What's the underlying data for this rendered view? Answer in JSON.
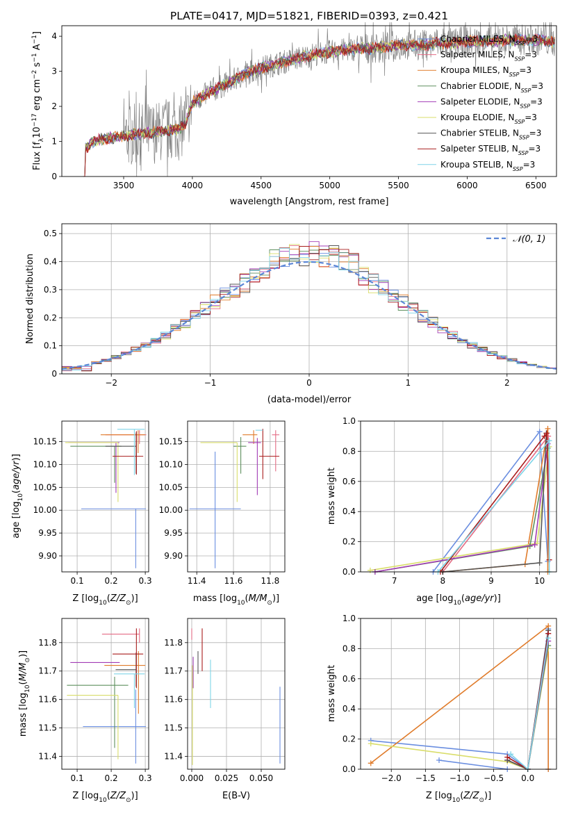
{
  "title": "PLATE=0417, MJD=51821, FIBERID=0393, z=0.421",
  "colors": {
    "chabrier_miles": "#6a8ee0",
    "salpeter_miles": "#e46b84",
    "kroupa_miles": "#e07b2a",
    "chabrier_elodie": "#5e8f5e",
    "salpeter_elodie": "#a23bb5",
    "kroupa_elodie": "#d9dd6a",
    "chabrier_stelib": "#555555",
    "salpeter_stelib": "#a81c1c",
    "kroupa_stelib": "#7fd4e8",
    "data": "#808080"
  },
  "chart_data": [
    {
      "id": "spectrum",
      "type": "line",
      "xlabel": "wavelength [Angstrom, rest frame]",
      "ylabel": "Flux [f_λ 10^-17 erg cm^-2 s^-1 A^-1]",
      "xlim": [
        3050,
        6650
      ],
      "ylim": [
        0,
        4.3
      ],
      "xticks": [
        3500,
        4000,
        4500,
        5000,
        5500,
        6000,
        6500
      ],
      "yticks": [
        0,
        1,
        2,
        3,
        4
      ],
      "grid": false,
      "legend_position": "right",
      "legend": [
        "Chabrier MILES, N_SSP=3",
        "Salpeter MILES, N_SSP=3",
        "Kroupa MILES, N_SSP=3",
        "Chabrier ELODIE, N_SSP=3",
        "Salpeter ELODIE, N_SSP=3",
        "Kroupa ELODIE, N_SSP=3",
        "Chabrier STELIB, N_SSP=3",
        "Salpeter STELIB, N_SSP=3",
        "Kroupa STELIB, N_SSP=3"
      ],
      "model_continuum": {
        "x": [
          3200,
          3220,
          3300,
          3400,
          3500,
          3600,
          3700,
          3800,
          3900,
          3950,
          4000,
          4100,
          4200,
          4300,
          4400,
          4500,
          4600,
          4700,
          4800,
          4900,
          5000,
          5100,
          5200,
          5300,
          5400,
          5500,
          5600,
          5700,
          5800,
          5900,
          6000,
          6100,
          6200,
          6300,
          6400,
          6500,
          6600
        ],
        "y": [
          0.0,
          0.8,
          1.05,
          1.1,
          1.15,
          1.2,
          1.25,
          1.3,
          1.35,
          1.5,
          2.1,
          2.35,
          2.55,
          2.75,
          2.95,
          3.1,
          3.2,
          3.3,
          3.4,
          3.5,
          3.55,
          3.6,
          3.65,
          3.65,
          3.7,
          3.75,
          3.75,
          3.75,
          3.8,
          3.8,
          3.85,
          3.85,
          3.85,
          3.9,
          3.9,
          3.9,
          3.85
        ]
      }
    },
    {
      "id": "residuals",
      "type": "step",
      "xlabel": "(data-model)/error",
      "ylabel": "Normed distribution",
      "xlim": [
        -2.5,
        2.5
      ],
      "ylim": [
        0,
        0.535
      ],
      "xticks": [
        -2,
        -1,
        0,
        1,
        2
      ],
      "yticks": [
        0.0,
        0.1,
        0.2,
        0.3,
        0.4,
        0.5
      ],
      "grid": true,
      "legend_position": "top-right",
      "legend": [
        "𝒩(0, 1)"
      ],
      "bin_edges_start": -2.5,
      "bin_width": 0.1
    },
    {
      "id": "age_vs_Z",
      "type": "errorbar",
      "xlabel": "Z [log10(Z/Z⊙)]",
      "ylabel": "age [log10(age/yr)]",
      "xlim": [
        0.055,
        0.31
      ],
      "ylim": [
        9.865,
        10.195
      ],
      "xticks": [
        0.1,
        0.2,
        0.3
      ],
      "xticklabels": [
        "0.1",
        "0.2",
        "0.3"
      ],
      "yticks": [
        9.9,
        9.95,
        10.0,
        10.05,
        10.1,
        10.15
      ],
      "yticklabels": [
        "9.90",
        "9.95",
        "10.00",
        "10.05",
        "10.10",
        "10.15"
      ],
      "grid": true,
      "points": [
        {
          "model": "chabrier_miles",
          "x": 0.272,
          "xerr": [
            0.16,
            0.03
          ],
          "y": 10.003,
          "yerr": [
            0.13,
            0.0
          ]
        },
        {
          "model": "salpeter_miles",
          "x": 0.283,
          "xerr": [
            0.1,
            0.02
          ],
          "y": 10.165,
          "yerr": [
            0.02,
            0.01
          ]
        },
        {
          "model": "kroupa_miles",
          "x": 0.279,
          "xerr": [
            0.11,
            0.02
          ],
          "y": 10.165,
          "yerr": [
            0.04,
            0.01
          ]
        },
        {
          "model": "chabrier_elodie",
          "x": 0.21,
          "xerr": [
            0.13,
            0.02
          ],
          "y": 10.14,
          "yerr": [
            0.08,
            0.0
          ]
        },
        {
          "model": "salpeter_elodie",
          "x": 0.214,
          "xerr": [
            0.14,
            0.01
          ],
          "y": 10.148,
          "yerr": [
            0.11,
            0.0
          ]
        },
        {
          "model": "kroupa_elodie",
          "x": 0.22,
          "xerr": [
            0.155,
            0.0
          ],
          "y": 10.148,
          "yerr": [
            0.13,
            0.0
          ]
        },
        {
          "model": "chabrier_stelib",
          "x": 0.273,
          "xerr": [
            0.09,
            0.0
          ],
          "y": 10.14,
          "yerr": [
            0.06,
            0.03
          ]
        },
        {
          "model": "salpeter_stelib",
          "x": 0.274,
          "xerr": [
            0.07,
            0.02
          ],
          "y": 10.118,
          "yerr": [
            0.04,
            0.055
          ]
        },
        {
          "model": "kroupa_stelib",
          "x": 0.268,
          "xerr": [
            0.05,
            0.03
          ],
          "y": 10.177,
          "yerr": [
            0.1,
            0.0
          ]
        }
      ]
    },
    {
      "id": "age_vs_mass",
      "type": "errorbar",
      "xlabel": "mass [log10(M/M⊙)]",
      "ylabel": "",
      "xlim": [
        11.35,
        11.88
      ],
      "ylim": [
        9.865,
        10.195
      ],
      "xticks": [
        11.4,
        11.6,
        11.8
      ],
      "xticklabels": [
        "11.4",
        "11.6",
        "11.8"
      ],
      "yticks": [
        9.9,
        9.95,
        10.0,
        10.05,
        10.1,
        10.15
      ],
      "yticklabels": [
        "9.90",
        "9.95",
        "10.00",
        "10.05",
        "10.10",
        "10.15"
      ],
      "grid": true,
      "points": [
        {
          "model": "chabrier_miles",
          "x": 11.5,
          "xerr": [
            0.14,
            0.14
          ],
          "y": 10.003,
          "yerr": [
            0.13,
            0.125
          ]
        },
        {
          "model": "salpeter_miles",
          "x": 11.83,
          "xerr": [
            0.02,
            0.02
          ],
          "y": 10.165,
          "yerr": [
            0.08,
            0.01
          ]
        },
        {
          "model": "kroupa_miles",
          "x": 11.71,
          "xerr": [
            0.06,
            0.02
          ],
          "y": 10.165,
          "yerr": [
            0.02,
            0.01
          ]
        },
        {
          "model": "chabrier_elodie",
          "x": 11.64,
          "xerr": [
            0.04,
            0.03
          ],
          "y": 10.14,
          "yerr": [
            0.06,
            0.02
          ]
        },
        {
          "model": "salpeter_elodie",
          "x": 11.73,
          "xerr": [
            0.05,
            0.02
          ],
          "y": 10.148,
          "yerr": [
            0.115,
            0.01
          ]
        },
        {
          "model": "kroupa_elodie",
          "x": 11.62,
          "xerr": [
            0.2,
            0.0
          ],
          "y": 10.148,
          "yerr": [
            0.13,
            0.0
          ]
        },
        {
          "model": "chabrier_stelib",
          "x": 11.7,
          "xerr": [
            0.0,
            0.0
          ],
          "y": 10.14,
          "yerr": [
            0.0,
            0.0
          ]
        },
        {
          "model": "salpeter_stelib",
          "x": 11.76,
          "xerr": [
            0.02,
            0.09
          ],
          "y": 10.118,
          "yerr": [
            0.05,
            0.06
          ]
        },
        {
          "model": "kroupa_stelib",
          "x": 11.72,
          "xerr": [
            0.0,
            0.04
          ],
          "y": 10.175,
          "yerr": [
            0.0,
            0.0
          ]
        }
      ]
    },
    {
      "id": "mass_weight_vs_age",
      "type": "line",
      "xlabel": "age [log10(age/yr)]",
      "ylabel": "mass weight",
      "xlim": [
        6.3,
        10.35
      ],
      "ylim": [
        0,
        1.0
      ],
      "xticks": [
        7,
        8,
        9,
        10
      ],
      "yticks": [
        0.0,
        0.2,
        0.4,
        0.6,
        0.8,
        1.0
      ],
      "yticklabels": [
        "0.0",
        "0.2",
        "0.4",
        "0.6",
        "0.8",
        "1.0"
      ],
      "grid": true,
      "series": [
        {
          "model": "chabrier_miles",
          "x": [
            7.8,
            10.0,
            10.17
          ],
          "y": [
            0.0,
            0.93,
            0.07
          ]
        },
        {
          "model": "kroupa_miles",
          "x": [
            8.0,
            9.7,
            10.17,
            10.17
          ],
          "y": [
            0.0,
            0.05,
            0.95,
            0.0
          ]
        },
        {
          "model": "salpeter_miles",
          "x": [
            8.0,
            10.18,
            10.2
          ],
          "y": [
            0.0,
            0.9,
            0.08
          ]
        },
        {
          "model": "kroupa_elodie",
          "x": [
            6.5,
            9.95,
            10.2
          ],
          "y": [
            0.01,
            0.19,
            0.83
          ]
        },
        {
          "model": "chabrier_elodie",
          "x": [
            6.6,
            9.8,
            10.17
          ],
          "y": [
            0.0,
            0.17,
            0.82
          ]
        },
        {
          "model": "salpeter_elodie",
          "x": [
            6.6,
            9.9,
            10.17
          ],
          "y": [
            0.0,
            0.18,
            0.85
          ]
        },
        {
          "model": "chabrier_stelib",
          "x": [
            8.0,
            10.0,
            10.14
          ],
          "y": [
            0.0,
            0.06,
            0.92
          ]
        },
        {
          "model": "salpeter_stelib",
          "x": [
            7.95,
            10.1,
            10.15,
            10.2
          ],
          "y": [
            0.0,
            0.9,
            0.92,
            0.08
          ]
        },
        {
          "model": "kroupa_stelib",
          "x": [
            7.9,
            10.2,
            10.2
          ],
          "y": [
            0.0,
            0.87,
            0.0
          ]
        }
      ]
    },
    {
      "id": "mass_vs_Z",
      "type": "errorbar",
      "xlabel": "Z [log10(Z/Z⊙)]",
      "ylabel": "mass [log10(M/M⊙)]",
      "xlim": [
        0.055,
        0.31
      ],
      "ylim": [
        11.355,
        11.885
      ],
      "xticks": [
        0.1,
        0.2,
        0.3
      ],
      "xticklabels": [
        "0.1",
        "0.2",
        "0.3"
      ],
      "yticks": [
        11.4,
        11.5,
        11.6,
        11.7,
        11.8
      ],
      "yticklabels": [
        "11.4",
        "11.5",
        "11.6",
        "11.7",
        "11.8"
      ],
      "grid": true,
      "points": [
        {
          "model": "chabrier_miles",
          "x": 0.272,
          "xerr": [
            0.155,
            0.03
          ],
          "y": 11.505,
          "yerr": [
            0.13,
            0.13
          ]
        },
        {
          "model": "salpeter_miles",
          "x": 0.283,
          "xerr": [
            0.11,
            0.0
          ],
          "y": 11.83,
          "yerr": [
            0.03,
            0.02
          ]
        },
        {
          "model": "kroupa_miles",
          "x": 0.28,
          "xerr": [
            0.1,
            0.02
          ],
          "y": 11.72,
          "yerr": [
            0.17,
            0.05
          ]
        },
        {
          "model": "chabrier_elodie",
          "x": 0.21,
          "xerr": [
            0.14,
            0.04
          ],
          "y": 11.65,
          "yerr": [
            0.22,
            0.03
          ]
        },
        {
          "model": "salpeter_elodie",
          "x": 0.215,
          "xerr": [
            0.135,
            0.01
          ],
          "y": 11.73,
          "yerr": [
            0.0,
            0.0
          ]
        },
        {
          "model": "kroupa_elodie",
          "x": 0.22,
          "xerr": [
            0.15,
            0.0
          ],
          "y": 11.615,
          "yerr": [
            0.225,
            0.0
          ]
        },
        {
          "model": "chabrier_stelib",
          "x": 0.273,
          "xerr": [
            0.06,
            0.0
          ],
          "y": 11.705,
          "yerr": [
            0.06,
            0.06
          ]
        },
        {
          "model": "salpeter_stelib",
          "x": 0.274,
          "xerr": [
            0.07,
            0.02
          ],
          "y": 11.76,
          "yerr": [
            0.12,
            0.09
          ]
        },
        {
          "model": "kroupa_stelib",
          "x": 0.268,
          "xerr": [
            0.06,
            0.03
          ],
          "y": 11.69,
          "yerr": [
            0.12,
            0.0
          ]
        }
      ]
    },
    {
      "id": "mass_vs_EBV",
      "type": "errorbar",
      "xlabel": "E(B-V)",
      "ylabel": "",
      "xlim": [
        -0.003,
        0.067
      ],
      "ylim": [
        11.355,
        11.885
      ],
      "xticks": [
        0.0,
        0.025,
        0.05
      ],
      "xticklabels": [
        "0.000",
        "0.025",
        "0.050"
      ],
      "yticks": [
        11.4,
        11.5,
        11.6,
        11.7,
        11.8
      ],
      "yticklabels": [
        "11.4",
        "11.5",
        "11.6",
        "11.7",
        "11.8"
      ],
      "grid": true,
      "points": [
        {
          "model": "chabrier_miles",
          "x": 0.0635,
          "xerr": [
            0.0,
            0.0
          ],
          "y": 11.51,
          "yerr": [
            0.135,
            0.135
          ]
        },
        {
          "model": "salpeter_miles",
          "x": 0.0,
          "xerr": [
            0.0,
            0.0
          ],
          "y": 11.83,
          "yerr": [
            0.02,
            0.02
          ]
        },
        {
          "model": "kroupa_miles",
          "x": 0.0,
          "xerr": [
            0.0,
            0.0
          ],
          "y": 11.72,
          "yerr": [
            0.0,
            0.0
          ]
        },
        {
          "model": "chabrier_elodie",
          "x": 0.001,
          "xerr": [
            0.0,
            0.0
          ],
          "y": 11.7,
          "yerr": [
            0.06,
            0.05
          ]
        },
        {
          "model": "salpeter_elodie",
          "x": 0.001,
          "xerr": [
            0.0,
            0.0
          ],
          "y": 11.7,
          "yerr": [
            0.06,
            0.05
          ]
        },
        {
          "model": "kroupa_elodie",
          "x": 0.0005,
          "xerr": [
            0.0,
            0.0
          ],
          "y": 11.56,
          "yerr": [
            0.19,
            0.16
          ]
        },
        {
          "model": "chabrier_stelib",
          "x": 0.0045,
          "xerr": [
            0.0,
            0.0
          ],
          "y": 11.72,
          "yerr": [
            0.03,
            0.05
          ]
        },
        {
          "model": "salpeter_stelib",
          "x": 0.0075,
          "xerr": [
            0.0,
            0.0
          ],
          "y": 11.76,
          "yerr": [
            0.06,
            0.09
          ]
        },
        {
          "model": "kroupa_stelib",
          "x": 0.0135,
          "xerr": [
            0.0,
            0.0
          ],
          "y": 11.66,
          "yerr": [
            0.09,
            0.08
          ]
        }
      ]
    },
    {
      "id": "mass_weight_vs_Z",
      "type": "line",
      "xlabel": "Z [log10(Z/Z⊙)]",
      "ylabel": "mass weight",
      "xlim": [
        -2.45,
        0.42
      ],
      "ylim": [
        0,
        1.0
      ],
      "xticks": [
        -2.0,
        -1.5,
        -1.0,
        -0.5,
        0.0
      ],
      "xticklabels": [
        "−2.0",
        "−1.5",
        "−1.0",
        "−0.5",
        "0.0"
      ],
      "yticks": [
        0.0,
        0.2,
        0.4,
        0.6,
        0.8,
        1.0
      ],
      "yticklabels": [
        "0.0",
        "0.2",
        "0.4",
        "0.6",
        "0.8",
        "1.0"
      ],
      "grid": true,
      "series": [
        {
          "model": "chabrier_miles",
          "x": [
            -2.3,
            -0.3,
            0.0,
            0.3,
            0.3
          ],
          "y": [
            0.19,
            0.1,
            0.0,
            0.93,
            0.0
          ]
        },
        {
          "model": "kroupa_miles",
          "x": [
            -2.3,
            0.3,
            0.3
          ],
          "y": [
            0.04,
            0.95,
            0.0
          ]
        },
        {
          "model": "salpeter_miles",
          "x": [
            -0.3,
            0.0,
            0.3
          ],
          "y": [
            0.08,
            0.0,
            0.9
          ]
        },
        {
          "model": "kroupa_elodie",
          "x": [
            -2.3,
            -0.3,
            0.0,
            0.3
          ],
          "y": [
            0.17,
            0.05,
            0.0,
            0.8
          ]
        },
        {
          "model": "chabrier_elodie",
          "x": [
            -0.3,
            0.0,
            0.3
          ],
          "y": [
            0.06,
            0.0,
            0.82
          ]
        },
        {
          "model": "salpeter_elodie",
          "x": [
            -0.3,
            0.0,
            0.3
          ],
          "y": [
            0.06,
            0.0,
            0.85
          ]
        },
        {
          "model": "chabrier_stelib",
          "x": [
            -0.3,
            0.0,
            0.3
          ],
          "y": [
            0.06,
            0.0,
            0.92
          ]
        },
        {
          "model": "salpeter_stelib",
          "x": [
            -0.3,
            0.0,
            0.3
          ],
          "y": [
            0.08,
            0.0,
            0.9
          ]
        },
        {
          "model": "kroupa_stelib",
          "x": [
            -0.25,
            0.0,
            0.3
          ],
          "y": [
            0.1,
            0.0,
            0.87
          ]
        },
        {
          "model": "chabrier_miles",
          "x": [
            -1.3,
            -0.3
          ],
          "y": [
            0.06,
            0.0
          ]
        }
      ]
    }
  ]
}
